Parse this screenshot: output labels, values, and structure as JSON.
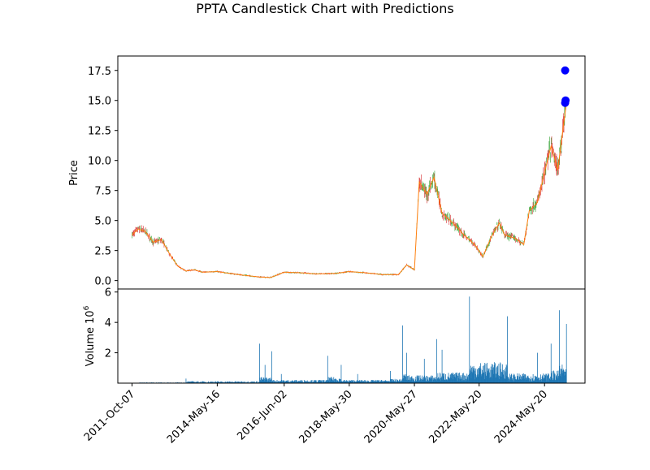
{
  "chart_data": {
    "type": "candlestick",
    "title": "PPTA Candlestick Chart with Predictions",
    "price_panel": {
      "ylabel": "Price",
      "ylim": [
        -0.7,
        18.7
      ],
      "yticks": [
        "0.0",
        "2.5",
        "5.0",
        "7.5",
        "10.0",
        "12.5",
        "15.0",
        "17.5"
      ],
      "ytick_values": [
        0.0,
        2.5,
        5.0,
        7.5,
        10.0,
        12.5,
        15.0,
        17.5
      ],
      "series_color_up": "#2ca02c",
      "series_color_down": "#d62728",
      "series_color_line": "#ff7f0e",
      "close_series": [
        {
          "x": "2011-10-07",
          "y": 3.8
        },
        {
          "x": "2011-12-15",
          "y": 4.3
        },
        {
          "x": "2012-03-01",
          "y": 4.1
        },
        {
          "x": "2012-06-01",
          "y": 3.2
        },
        {
          "x": "2012-09-01",
          "y": 3.4
        },
        {
          "x": "2012-12-01",
          "y": 2.2
        },
        {
          "x": "2013-03-01",
          "y": 1.2
        },
        {
          "x": "2013-06-01",
          "y": 0.8
        },
        {
          "x": "2013-09-01",
          "y": 0.9
        },
        {
          "x": "2013-12-01",
          "y": 0.7
        },
        {
          "x": "2014-05-16",
          "y": 0.75
        },
        {
          "x": "2014-10-01",
          "y": 0.6
        },
        {
          "x": "2015-03-01",
          "y": 0.45
        },
        {
          "x": "2015-09-01",
          "y": 0.3
        },
        {
          "x": "2016-01-01",
          "y": 0.25
        },
        {
          "x": "2016-06-02",
          "y": 0.7
        },
        {
          "x": "2016-12-01",
          "y": 0.65
        },
        {
          "x": "2017-06-01",
          "y": 0.55
        },
        {
          "x": "2018-01-01",
          "y": 0.6
        },
        {
          "x": "2018-05-30",
          "y": 0.75
        },
        {
          "x": "2018-12-01",
          "y": 0.65
        },
        {
          "x": "2019-06-01",
          "y": 0.5
        },
        {
          "x": "2019-12-01",
          "y": 0.5
        },
        {
          "x": "2020-03-01",
          "y": 1.3
        },
        {
          "x": "2020-05-27",
          "y": 0.9
        },
        {
          "x": "2020-07-20",
          "y": 8.2
        },
        {
          "x": "2020-10-15",
          "y": 7.2
        },
        {
          "x": "2021-01-01",
          "y": 8.6
        },
        {
          "x": "2021-04-01",
          "y": 5.6
        },
        {
          "x": "2021-08-01",
          "y": 4.8
        },
        {
          "x": "2021-12-01",
          "y": 3.8
        },
        {
          "x": "2022-04-01",
          "y": 3.0
        },
        {
          "x": "2022-07-01",
          "y": 2.0
        },
        {
          "x": "2022-10-01",
          "y": 3.6
        },
        {
          "x": "2023-01-01",
          "y": 4.8
        },
        {
          "x": "2023-03-01",
          "y": 3.8
        },
        {
          "x": "2023-07-01",
          "y": 3.5
        },
        {
          "x": "2023-10-01",
          "y": 3.0
        },
        {
          "x": "2023-12-01",
          "y": 5.8
        },
        {
          "x": "2024-03-01",
          "y": 6.5
        },
        {
          "x": "2024-05-20",
          "y": 9.0
        },
        {
          "x": "2024-08-01",
          "y": 11.2
        },
        {
          "x": "2024-10-15",
          "y": 9.2
        },
        {
          "x": "2024-12-01",
          "y": 12.0
        },
        {
          "x": "2025-01-20",
          "y": 14.8
        }
      ],
      "predictions": [
        {
          "x": "2025-01-05",
          "y": 17.5,
          "color": "#0000ff"
        },
        {
          "x": "2025-01-05",
          "y": 14.8,
          "color": "#0000ff"
        },
        {
          "x": "2025-01-10",
          "y": 15.0,
          "color": "#0000ff"
        }
      ]
    },
    "volume_panel": {
      "ylabel": "Volume",
      "ylabel_exponent": "6",
      "yticks": [
        "2",
        "4",
        "6"
      ],
      "ytick_values": [
        2,
        4,
        6
      ],
      "ylim": [
        0,
        6.2
      ],
      "bar_color": "#1f77b4",
      "volume_series": [
        {
          "x": "2012-01-01",
          "y": 0.05
        },
        {
          "x": "2013-06-01",
          "y": 0.3
        },
        {
          "x": "2015-09-01",
          "y": 2.6
        },
        {
          "x": "2015-11-01",
          "y": 1.2
        },
        {
          "x": "2016-01-15",
          "y": 2.1
        },
        {
          "x": "2016-05-01",
          "y": 0.6
        },
        {
          "x": "2017-10-01",
          "y": 1.8
        },
        {
          "x": "2018-03-01",
          "y": 1.2
        },
        {
          "x": "2018-09-01",
          "y": 0.6
        },
        {
          "x": "2019-09-01",
          "y": 0.8
        },
        {
          "x": "2020-01-15",
          "y": 3.8
        },
        {
          "x": "2020-03-01",
          "y": 2.0
        },
        {
          "x": "2020-09-15",
          "y": 1.6
        },
        {
          "x": "2021-02-01",
          "y": 2.9
        },
        {
          "x": "2021-04-01",
          "y": 2.2
        },
        {
          "x": "2022-02-01",
          "y": 5.7
        },
        {
          "x": "2023-04-01",
          "y": 4.4
        },
        {
          "x": "2024-03-01",
          "y": 2.0
        },
        {
          "x": "2024-08-01",
          "y": 2.6
        },
        {
          "x": "2024-11-01",
          "y": 4.8
        },
        {
          "x": "2025-01-20",
          "y": 3.9
        }
      ]
    },
    "x_axis": {
      "xlim": [
        "2011-05-01",
        "2025-08-15"
      ],
      "ticks": [
        {
          "label": "2011-Oct-07",
          "date": "2011-10-07"
        },
        {
          "label": "2014-May-16",
          "date": "2014-05-16"
        },
        {
          "label": "2016-Jun-02",
          "date": "2016-06-02"
        },
        {
          "label": "2018-May-30",
          "date": "2018-05-30"
        },
        {
          "label": "2020-May-27",
          "date": "2020-05-27"
        },
        {
          "label": "2022-May-20",
          "date": "2022-05-20"
        },
        {
          "label": "2024-May-20",
          "date": "2024-05-20"
        }
      ]
    }
  }
}
